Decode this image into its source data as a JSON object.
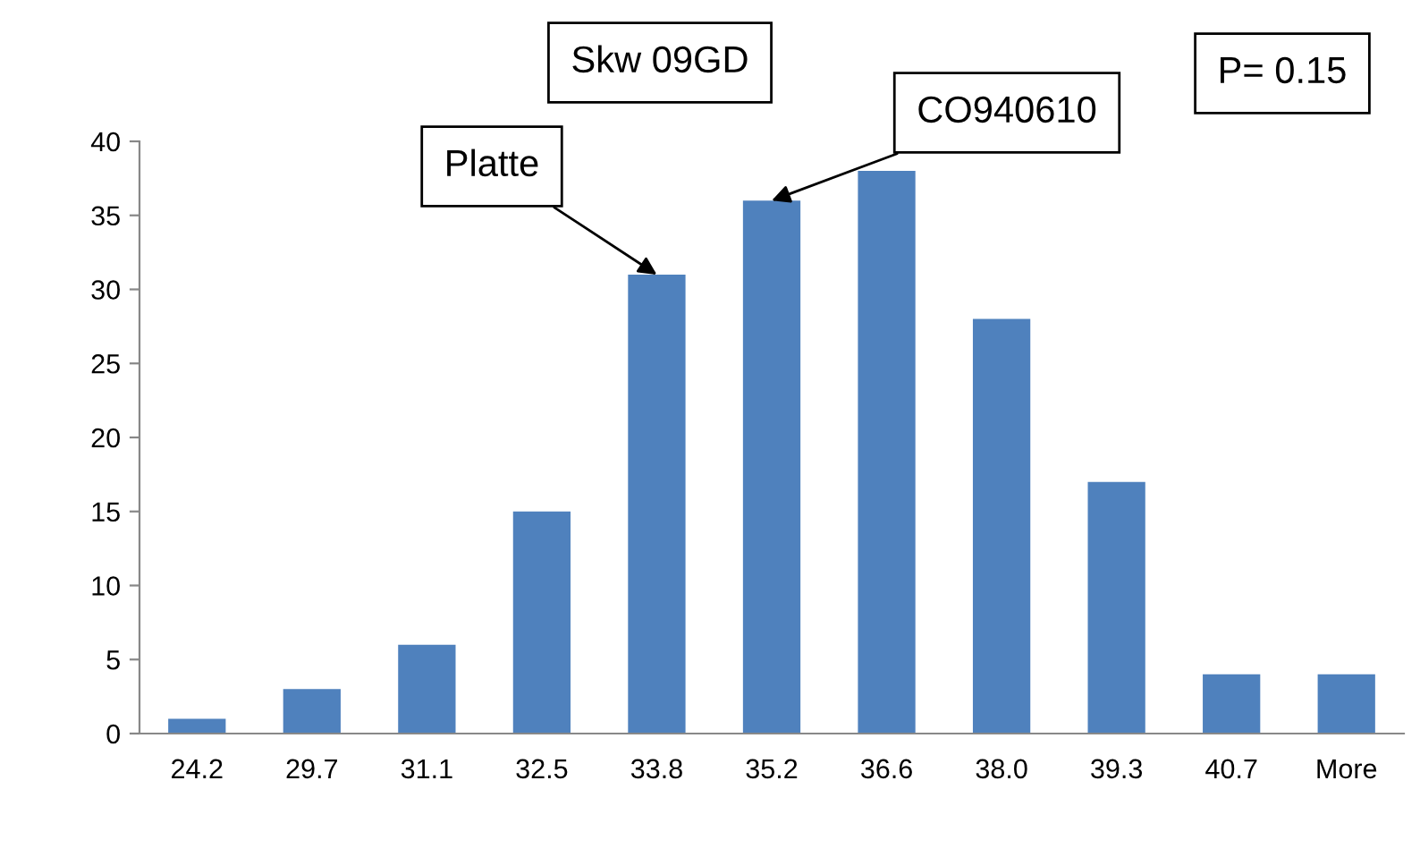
{
  "chart_data": {
    "type": "bar",
    "categories": [
      "24.2",
      "29.7",
      "31.1",
      "32.5",
      "33.8",
      "35.2",
      "36.6",
      "38.0",
      "39.3",
      "40.7",
      "More"
    ],
    "values": [
      1,
      3,
      6,
      15,
      31,
      36,
      38,
      28,
      17,
      4,
      4
    ],
    "color": "#4f81bd",
    "ylim": [
      0,
      40
    ],
    "yticks": [
      0,
      5,
      10,
      15,
      20,
      25,
      30,
      35,
      40
    ],
    "grid": false,
    "legend": false,
    "annotations": [
      {
        "text": "Platte",
        "x": "33.8",
        "y": 31
      },
      {
        "text": "CO940610",
        "x": "35.2",
        "y": 36
      },
      "Skw 09GD",
      "P= 0.15"
    ]
  }
}
